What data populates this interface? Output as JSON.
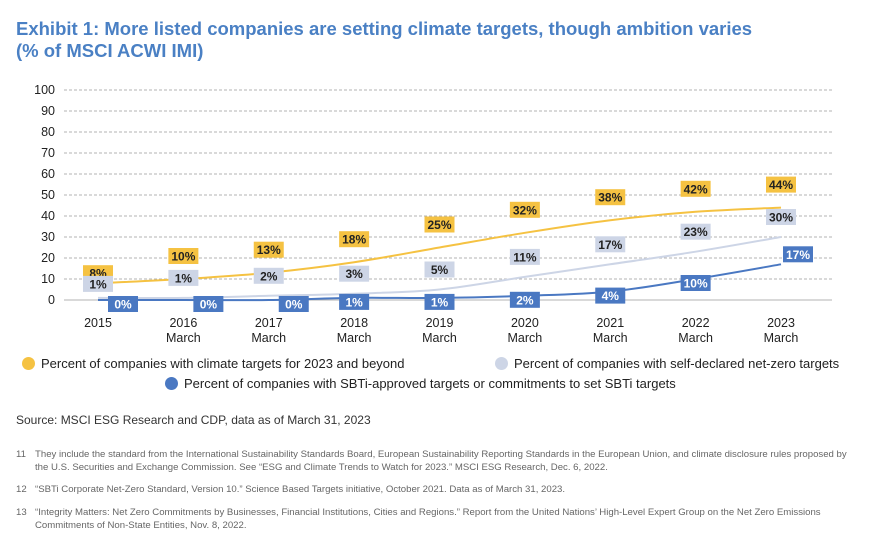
{
  "title": {
    "line1": "Exhibit 1: More listed companies are setting climate targets, though ambition varies",
    "line2": "(% of MSCI ACWI IMI)"
  },
  "chart_data": {
    "type": "line",
    "categories": [
      [
        "2015",
        ""
      ],
      [
        "2016",
        "March"
      ],
      [
        "2017",
        "March"
      ],
      [
        "2018",
        "March"
      ],
      [
        "2019",
        "March"
      ],
      [
        "2020",
        "March"
      ],
      [
        "2021",
        "March"
      ],
      [
        "2022",
        "March"
      ],
      [
        "2023",
        "March"
      ]
    ],
    "ylim": [
      0,
      100
    ],
    "yticks": [
      0,
      10,
      20,
      30,
      40,
      50,
      60,
      70,
      80,
      90,
      100
    ],
    "grid": true,
    "series": [
      {
        "name": "Percent of companies with climate targets for 2023 and beyond",
        "color": "#f5c242",
        "label_color": "#f5c242",
        "label_text_color": "#222222",
        "values": [
          8,
          10,
          13,
          18,
          25,
          32,
          38,
          42,
          44
        ],
        "labels": [
          "8%",
          "10%",
          "13%",
          "18%",
          "25%",
          "32%",
          "38%",
          "42%",
          "44%"
        ]
      },
      {
        "name": "Percent of companies with self-declared net-zero targets",
        "color": "#cdd5e6",
        "label_color": "#cdd5e6",
        "label_text_color": "#222222",
        "values": [
          1,
          1,
          2,
          3,
          5,
          11,
          17,
          23,
          30
        ],
        "labels": [
          "1%",
          "1%",
          "2%",
          "3%",
          "5%",
          "11%",
          "17%",
          "23%",
          "30%"
        ]
      },
      {
        "name": "Percent of companies with SBTi-approved targets or commitments to set SBTi targets",
        "color": "#4a78c2",
        "label_color": "#4a78c2",
        "label_text_color": "#ffffff",
        "values": [
          0,
          0,
          0,
          1,
          1,
          2,
          4,
          10,
          17
        ],
        "labels": [
          "0%",
          "0%",
          "0%",
          "1%",
          "1%",
          "2%",
          "4%",
          "10%",
          "17%"
        ]
      }
    ]
  },
  "source": "Source: MSCI ESG Research and CDP, data as of March 31, 2023",
  "footnotes": [
    {
      "num": "11",
      "text": "They include the standard from the International Sustainability Standards Board, European Sustainability Reporting Standards in the European Union, and climate disclosure rules proposed by the U.S. Securities and Exchange Commission. See “ESG and Climate Trends to Watch for 2023.” MSCI ESG Research, Dec. 6, 2022."
    },
    {
      "num": "12",
      "text": "“SBTi Corporate Net-Zero Standard, Version 10.” Science Based Targets initiative, October 2021. Data as of March 31, 2023."
    },
    {
      "num": "13",
      "text": "“Integrity Matters: Net Zero Commitments by Businesses, Financial Institutions, Cities and Regions.” Report from the United Nations’ High-Level Expert Group on the Net Zero Emissions Commitments of Non-State Entities, Nov. 8, 2022."
    }
  ]
}
